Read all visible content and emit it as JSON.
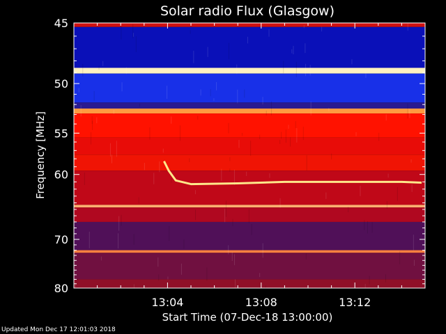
{
  "chart_data": {
    "type": "heatmap",
    "title": "Solar radio Flux (Glasgow)",
    "xlabel": "Start Time (07-Dec-18 13:00:00)",
    "ylabel": "Frequency [MHz]",
    "x_range_min": [
      0,
      15
    ],
    "y_range_mhz": [
      45,
      80
    ],
    "x_ticks": [
      {
        "min": 4,
        "label": "13:04"
      },
      {
        "min": 8,
        "label": "13:08"
      },
      {
        "min": 12,
        "label": "13:12"
      }
    ],
    "y_ticks": [
      {
        "mhz": 45,
        "label": "45"
      },
      {
        "mhz": 50,
        "label": "50"
      },
      {
        "mhz": 55,
        "label": "55"
      },
      {
        "mhz": 60,
        "label": "60"
      },
      {
        "mhz": 70,
        "label": "70"
      },
      {
        "mhz": 80,
        "label": "80"
      }
    ],
    "frequency_bands": [
      {
        "from": 45.0,
        "to": 45.3,
        "color": "#d01010"
      },
      {
        "from": 45.3,
        "to": 48.6,
        "color": "#0a10b8"
      },
      {
        "from": 48.6,
        "to": 49.1,
        "color": "#fff2c0"
      },
      {
        "from": 49.1,
        "to": 51.8,
        "color": "#1830e8"
      },
      {
        "from": 51.8,
        "to": 52.4,
        "color": "#2a1a90"
      },
      {
        "from": 52.4,
        "to": 52.9,
        "color": "#ff9a40"
      },
      {
        "from": 52.9,
        "to": 55.5,
        "color": "#ff1200"
      },
      {
        "from": 55.5,
        "to": 57.5,
        "color": "#e80c08"
      },
      {
        "from": 57.5,
        "to": 59.5,
        "color": "#f01404"
      },
      {
        "from": 59.5,
        "to": 64.3,
        "color": "#c00818"
      },
      {
        "from": 64.3,
        "to": 64.7,
        "color": "#ffb070"
      },
      {
        "from": 64.7,
        "to": 67.0,
        "color": "#b00820"
      },
      {
        "from": 67.0,
        "to": 72.0,
        "color": "#501058"
      },
      {
        "from": 72.0,
        "to": 72.5,
        "color": "#ff8040"
      },
      {
        "from": 72.5,
        "to": 78.0,
        "color": "#701040"
      },
      {
        "from": 78.0,
        "to": 80.0,
        "color": "#901028"
      }
    ],
    "burst_track": [
      {
        "min": 3.85,
        "mhz": 58.3
      },
      {
        "min": 4.05,
        "mhz": 59.5
      },
      {
        "min": 4.35,
        "mhz": 60.8
      },
      {
        "min": 5.0,
        "mhz": 61.3
      },
      {
        "min": 7.0,
        "mhz": 61.2
      },
      {
        "min": 9.0,
        "mhz": 61.0
      },
      {
        "min": 11.0,
        "mhz": 61.0
      },
      {
        "min": 12.0,
        "mhz": 61.0
      },
      {
        "min": 14.0,
        "mhz": 61.0
      },
      {
        "min": 14.85,
        "mhz": 61.1
      }
    ],
    "colors": {
      "cold": "#0a10b8",
      "hot": "#fff060",
      "background": "#000000"
    }
  },
  "footer": "Updated Mon Dec 17 12:01:03 2018"
}
